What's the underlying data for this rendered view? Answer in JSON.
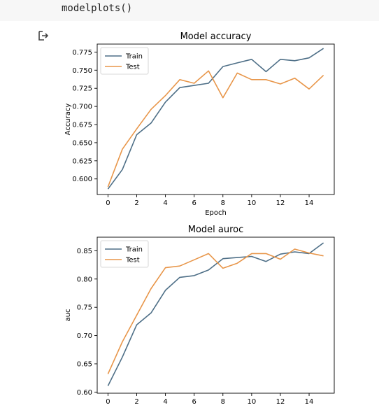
{
  "cell": {
    "code": "modelplots()"
  },
  "output": {
    "icon": "output-arrow-icon"
  },
  "colors": {
    "train": "#4e6f87",
    "test": "#e8964a"
  },
  "chart_data": [
    {
      "type": "line",
      "title": "Model accuracy",
      "xlabel": "Epoch",
      "ylabel": "Accuracy",
      "x": [
        0,
        1,
        2,
        3,
        4,
        5,
        6,
        7,
        8,
        9,
        10,
        11,
        12,
        13,
        14,
        15
      ],
      "xticks": [
        0,
        2,
        4,
        6,
        8,
        10,
        12,
        14
      ],
      "yticks": [
        0.6,
        0.625,
        0.65,
        0.675,
        0.7,
        0.725,
        0.75,
        0.775
      ],
      "ytick_labels": [
        "0.600",
        "0.625",
        "0.650",
        "0.675",
        "0.700",
        "0.725",
        "0.750",
        "0.775"
      ],
      "xlim": [
        -0.75,
        15.75
      ],
      "ylim": [
        0.5785,
        0.786
      ],
      "legend": "top-left",
      "series": [
        {
          "name": "Train",
          "values": [
            0.586,
            0.613,
            0.661,
            0.677,
            0.706,
            0.726,
            0.729,
            0.732,
            0.755,
            0.76,
            0.765,
            0.748,
            0.765,
            0.763,
            0.767,
            0.78
          ]
        },
        {
          "name": "Test",
          "values": [
            0.589,
            0.641,
            0.669,
            0.696,
            0.715,
            0.737,
            0.732,
            0.749,
            0.712,
            0.746,
            0.737,
            0.737,
            0.731,
            0.739,
            0.724,
            0.743
          ]
        }
      ]
    },
    {
      "type": "line",
      "title": "Model auroc",
      "xlabel": "",
      "ylabel": "auc",
      "x": [
        0,
        1,
        2,
        3,
        4,
        5,
        6,
        7,
        8,
        9,
        10,
        11,
        12,
        13,
        14,
        15
      ],
      "xticks": [
        0,
        2,
        4,
        6,
        8,
        10,
        12,
        14
      ],
      "yticks": [
        0.6,
        0.65,
        0.7,
        0.75,
        0.8,
        0.85
      ],
      "ytick_labels": [
        "0.60",
        "0.65",
        "0.70",
        "0.75",
        "0.80",
        "0.85"
      ],
      "xlim": [
        -0.75,
        15.75
      ],
      "ylim": [
        0.598,
        0.874
      ],
      "legend": "top-left",
      "series": [
        {
          "name": "Train",
          "values": [
            0.611,
            0.662,
            0.719,
            0.74,
            0.78,
            0.803,
            0.806,
            0.816,
            0.836,
            0.838,
            0.84,
            0.831,
            0.844,
            0.848,
            0.845,
            0.864
          ]
        },
        {
          "name": "Test",
          "values": [
            0.632,
            0.689,
            0.736,
            0.783,
            0.82,
            0.823,
            0.834,
            0.845,
            0.819,
            0.828,
            0.845,
            0.845,
            0.835,
            0.853,
            0.846,
            0.841
          ]
        }
      ]
    }
  ]
}
